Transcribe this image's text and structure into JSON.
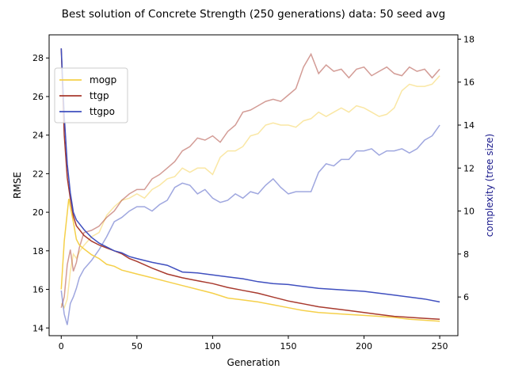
{
  "chart_data": {
    "type": "line",
    "title": "Best solution of Concrete Strength (250 generations) data: 50 seed avg",
    "xlabel": "Generation",
    "ylabel": "RMSE",
    "y2label": "complexity (tree size)",
    "xlim": [
      -8,
      262
    ],
    "ylim": [
      13.6,
      29.2
    ],
    "y2lim": [
      4.2,
      18.2
    ],
    "xticks": [
      0,
      50,
      100,
      150,
      200,
      250
    ],
    "yticks": [
      14,
      16,
      18,
      20,
      22,
      24,
      26,
      28
    ],
    "y2ticks": [
      6,
      8,
      10,
      12,
      14,
      16,
      18
    ],
    "grid": false,
    "legend_position": "upper-left",
    "series": [
      {
        "name": "mogp",
        "color": "#f5d04a",
        "axis": "rmse",
        "points": [
          [
            0,
            16.0
          ],
          [
            2,
            18.5
          ],
          [
            5,
            20.7
          ],
          [
            8,
            19.5
          ],
          [
            10,
            18.6
          ],
          [
            12,
            18.3
          ],
          [
            15,
            18.1
          ],
          [
            20,
            17.8
          ],
          [
            25,
            17.6
          ],
          [
            30,
            17.3
          ],
          [
            35,
            17.2
          ],
          [
            40,
            17.0
          ],
          [
            45,
            16.9
          ],
          [
            50,
            16.8
          ],
          [
            60,
            16.6
          ],
          [
            70,
            16.4
          ],
          [
            80,
            16.2
          ],
          [
            90,
            16.0
          ],
          [
            100,
            15.8
          ],
          [
            110,
            15.55
          ],
          [
            120,
            15.45
          ],
          [
            130,
            15.35
          ],
          [
            140,
            15.2
          ],
          [
            150,
            15.05
          ],
          [
            160,
            14.9
          ],
          [
            170,
            14.8
          ],
          [
            180,
            14.75
          ],
          [
            190,
            14.7
          ],
          [
            200,
            14.65
          ],
          [
            210,
            14.6
          ],
          [
            220,
            14.55
          ],
          [
            230,
            14.45
          ],
          [
            240,
            14.4
          ],
          [
            250,
            14.35
          ]
        ]
      },
      {
        "name": "ttgp",
        "color": "#a83a2e",
        "axis": "rmse",
        "points": [
          [
            0,
            28.5
          ],
          [
            2,
            24.0
          ],
          [
            4,
            21.8
          ],
          [
            6,
            20.7
          ],
          [
            8,
            19.8
          ],
          [
            10,
            19.3
          ],
          [
            12,
            19.1
          ],
          [
            15,
            18.8
          ],
          [
            20,
            18.5
          ],
          [
            25,
            18.3
          ],
          [
            30,
            18.15
          ],
          [
            35,
            18.0
          ],
          [
            40,
            17.85
          ],
          [
            45,
            17.6
          ],
          [
            50,
            17.45
          ],
          [
            60,
            17.1
          ],
          [
            70,
            16.8
          ],
          [
            80,
            16.6
          ],
          [
            90,
            16.45
          ],
          [
            100,
            16.3
          ],
          [
            110,
            16.1
          ],
          [
            120,
            15.95
          ],
          [
            130,
            15.8
          ],
          [
            140,
            15.6
          ],
          [
            150,
            15.4
          ],
          [
            160,
            15.25
          ],
          [
            170,
            15.1
          ],
          [
            180,
            15.0
          ],
          [
            190,
            14.9
          ],
          [
            200,
            14.8
          ],
          [
            210,
            14.7
          ],
          [
            220,
            14.6
          ],
          [
            230,
            14.55
          ],
          [
            240,
            14.5
          ],
          [
            250,
            14.45
          ]
        ]
      },
      {
        "name": "ttgpo",
        "color": "#3f4fbf",
        "axis": "rmse",
        "points": [
          [
            0,
            28.5
          ],
          [
            2,
            25.0
          ],
          [
            4,
            22.5
          ],
          [
            6,
            21.0
          ],
          [
            8,
            20.0
          ],
          [
            10,
            19.6
          ],
          [
            15,
            19.1
          ],
          [
            20,
            18.7
          ],
          [
            25,
            18.4
          ],
          [
            30,
            18.2
          ],
          [
            35,
            18.0
          ],
          [
            40,
            17.9
          ],
          [
            45,
            17.7
          ],
          [
            50,
            17.6
          ],
          [
            60,
            17.4
          ],
          [
            70,
            17.25
          ],
          [
            80,
            16.9
          ],
          [
            90,
            16.85
          ],
          [
            100,
            16.75
          ],
          [
            110,
            16.65
          ],
          [
            120,
            16.55
          ],
          [
            130,
            16.4
          ],
          [
            140,
            16.3
          ],
          [
            150,
            16.25
          ],
          [
            160,
            16.15
          ],
          [
            170,
            16.05
          ],
          [
            180,
            16.0
          ],
          [
            190,
            15.95
          ],
          [
            200,
            15.9
          ],
          [
            210,
            15.8
          ],
          [
            220,
            15.7
          ],
          [
            230,
            15.6
          ],
          [
            240,
            15.5
          ],
          [
            250,
            15.35
          ]
        ]
      },
      {
        "name": "",
        "color": "#f5d04a",
        "axis": "complexity",
        "opacity": 0.5,
        "points": [
          [
            0,
            5.7
          ],
          [
            2,
            5.5
          ],
          [
            4,
            5.9
          ],
          [
            6,
            7.2
          ],
          [
            8,
            8.0
          ],
          [
            10,
            7.8
          ],
          [
            12,
            8.1
          ],
          [
            15,
            8.4
          ],
          [
            20,
            8.8
          ],
          [
            25,
            9.0
          ],
          [
            30,
            9.8
          ],
          [
            35,
            10.2
          ],
          [
            40,
            10.5
          ],
          [
            45,
            10.6
          ],
          [
            50,
            10.8
          ],
          [
            55,
            10.6
          ],
          [
            60,
            11.0
          ],
          [
            65,
            11.2
          ],
          [
            70,
            11.5
          ],
          [
            75,
            11.6
          ],
          [
            80,
            12.0
          ],
          [
            85,
            11.8
          ],
          [
            90,
            12.0
          ],
          [
            95,
            12.0
          ],
          [
            100,
            11.7
          ],
          [
            105,
            12.5
          ],
          [
            110,
            12.8
          ],
          [
            115,
            12.8
          ],
          [
            120,
            13.0
          ],
          [
            125,
            13.5
          ],
          [
            130,
            13.6
          ],
          [
            135,
            14.0
          ],
          [
            140,
            14.1
          ],
          [
            145,
            14.0
          ],
          [
            150,
            14.0
          ],
          [
            155,
            13.9
          ],
          [
            160,
            14.2
          ],
          [
            165,
            14.3
          ],
          [
            170,
            14.6
          ],
          [
            175,
            14.4
          ],
          [
            180,
            14.6
          ],
          [
            185,
            14.8
          ],
          [
            190,
            14.6
          ],
          [
            195,
            14.9
          ],
          [
            200,
            14.8
          ],
          [
            205,
            14.6
          ],
          [
            210,
            14.4
          ],
          [
            215,
            14.5
          ],
          [
            220,
            14.8
          ],
          [
            225,
            15.6
          ],
          [
            230,
            15.9
          ],
          [
            235,
            15.8
          ],
          [
            240,
            15.8
          ],
          [
            245,
            15.9
          ],
          [
            250,
            16.3
          ]
        ]
      },
      {
        "name": "",
        "color": "#a83a2e",
        "axis": "complexity",
        "opacity": 0.5,
        "points": [
          [
            0,
            5.5
          ],
          [
            2,
            6.0
          ],
          [
            4,
            7.5
          ],
          [
            6,
            8.2
          ],
          [
            8,
            7.2
          ],
          [
            10,
            7.6
          ],
          [
            12,
            8.3
          ],
          [
            15,
            9.0
          ],
          [
            20,
            9.1
          ],
          [
            25,
            9.3
          ],
          [
            30,
            9.7
          ],
          [
            35,
            10.0
          ],
          [
            40,
            10.5
          ],
          [
            45,
            10.8
          ],
          [
            50,
            11.0
          ],
          [
            55,
            11.0
          ],
          [
            60,
            11.5
          ],
          [
            65,
            11.7
          ],
          [
            70,
            12.0
          ],
          [
            75,
            12.3
          ],
          [
            80,
            12.8
          ],
          [
            85,
            13.0
          ],
          [
            90,
            13.4
          ],
          [
            95,
            13.3
          ],
          [
            100,
            13.5
          ],
          [
            105,
            13.2
          ],
          [
            110,
            13.7
          ],
          [
            115,
            14.0
          ],
          [
            120,
            14.6
          ],
          [
            125,
            14.7
          ],
          [
            130,
            14.9
          ],
          [
            135,
            15.1
          ],
          [
            140,
            15.2
          ],
          [
            145,
            15.1
          ],
          [
            150,
            15.4
          ],
          [
            155,
            15.7
          ],
          [
            160,
            16.7
          ],
          [
            165,
            17.3
          ],
          [
            170,
            16.4
          ],
          [
            175,
            16.8
          ],
          [
            180,
            16.5
          ],
          [
            185,
            16.6
          ],
          [
            190,
            16.2
          ],
          [
            195,
            16.6
          ],
          [
            200,
            16.7
          ],
          [
            205,
            16.3
          ],
          [
            210,
            16.5
          ],
          [
            215,
            16.7
          ],
          [
            220,
            16.4
          ],
          [
            225,
            16.3
          ],
          [
            230,
            16.7
          ],
          [
            235,
            16.5
          ],
          [
            240,
            16.6
          ],
          [
            245,
            16.2
          ],
          [
            250,
            16.6
          ]
        ]
      },
      {
        "name": "",
        "color": "#3f4fbf",
        "axis": "complexity",
        "opacity": 0.5,
        "points": [
          [
            0,
            6.3
          ],
          [
            2,
            5.2
          ],
          [
            4,
            4.7
          ],
          [
            6,
            5.7
          ],
          [
            8,
            6.0
          ],
          [
            10,
            6.4
          ],
          [
            12,
            6.9
          ],
          [
            15,
            7.3
          ],
          [
            20,
            7.7
          ],
          [
            25,
            8.2
          ],
          [
            30,
            8.8
          ],
          [
            35,
            9.5
          ],
          [
            40,
            9.7
          ],
          [
            45,
            10.0
          ],
          [
            50,
            10.2
          ],
          [
            55,
            10.2
          ],
          [
            60,
            10.0
          ],
          [
            65,
            10.3
          ],
          [
            70,
            10.5
          ],
          [
            75,
            11.1
          ],
          [
            80,
            11.3
          ],
          [
            85,
            11.2
          ],
          [
            90,
            10.8
          ],
          [
            95,
            11.0
          ],
          [
            100,
            10.6
          ],
          [
            105,
            10.4
          ],
          [
            110,
            10.5
          ],
          [
            115,
            10.8
          ],
          [
            120,
            10.6
          ],
          [
            125,
            10.9
          ],
          [
            130,
            10.8
          ],
          [
            135,
            11.2
          ],
          [
            140,
            11.5
          ],
          [
            145,
            11.1
          ],
          [
            150,
            10.8
          ],
          [
            155,
            10.9
          ],
          [
            160,
            10.9
          ],
          [
            165,
            10.9
          ],
          [
            170,
            11.8
          ],
          [
            175,
            12.2
          ],
          [
            180,
            12.1
          ],
          [
            185,
            12.4
          ],
          [
            190,
            12.4
          ],
          [
            195,
            12.8
          ],
          [
            200,
            12.8
          ],
          [
            205,
            12.9
          ],
          [
            210,
            12.6
          ],
          [
            215,
            12.8
          ],
          [
            220,
            12.8
          ],
          [
            225,
            12.9
          ],
          [
            230,
            12.7
          ],
          [
            235,
            12.9
          ],
          [
            240,
            13.3
          ],
          [
            245,
            13.5
          ],
          [
            250,
            14.0
          ]
        ]
      }
    ]
  }
}
